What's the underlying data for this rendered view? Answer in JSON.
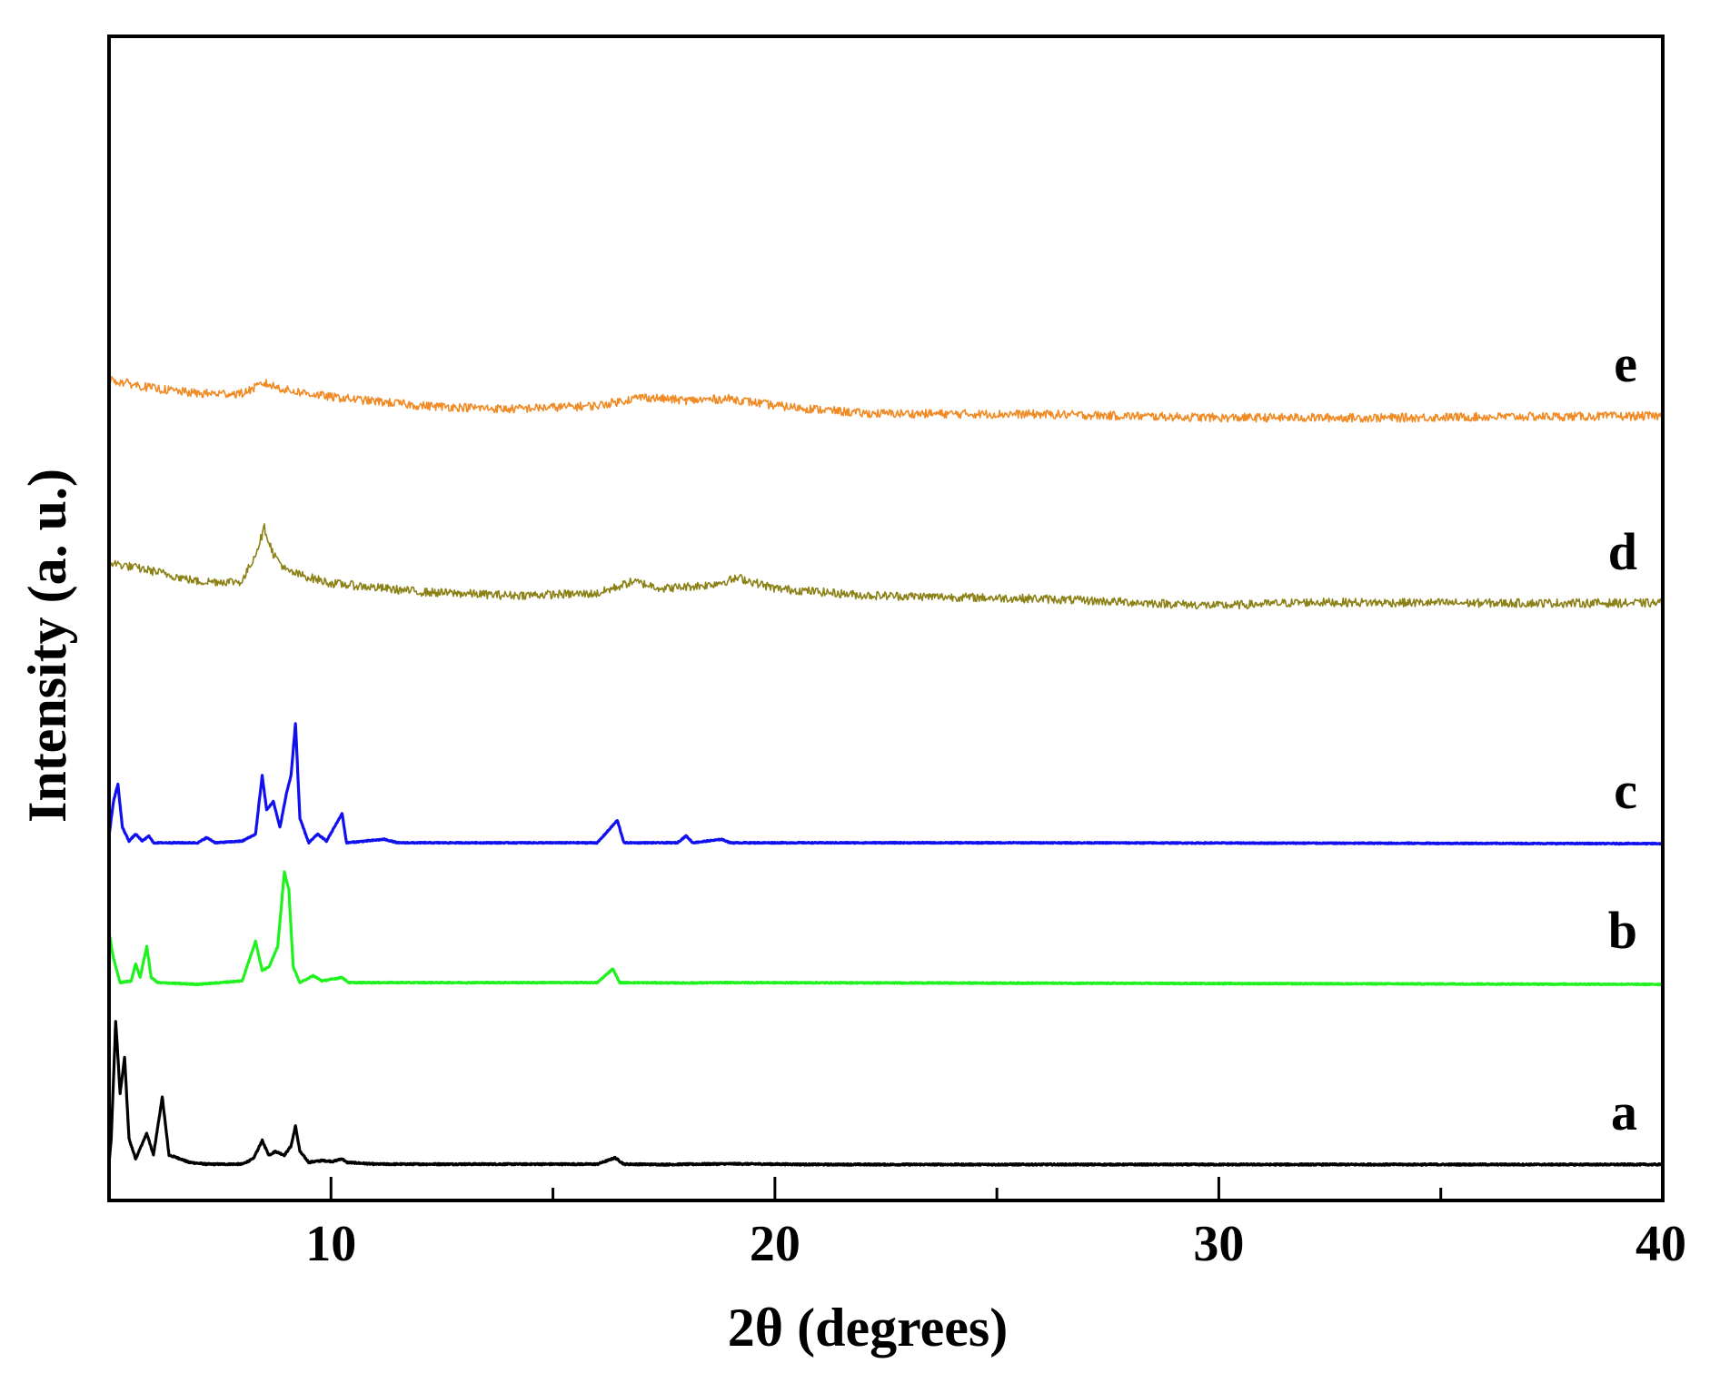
{
  "chart_data": {
    "type": "line",
    "title": "",
    "xlabel": "2θ (degrees)",
    "ylabel": "Intensity (a. u.)",
    "xlim": [
      5,
      40
    ],
    "x_ticks": [
      10,
      20,
      30,
      40
    ],
    "y_ticks_labeled": false,
    "grid": false,
    "legend": "none",
    "series": [
      {
        "name": "a",
        "color": "#000000",
        "baseline": 0.0,
        "noise": 0.004,
        "line_weight": "thick",
        "points": [
          [
            5.0,
            0.015
          ],
          [
            5.05,
            0.15
          ],
          [
            5.15,
            0.8
          ],
          [
            5.25,
            0.4
          ],
          [
            5.35,
            0.6
          ],
          [
            5.45,
            0.15
          ],
          [
            5.6,
            0.04
          ],
          [
            5.85,
            0.18
          ],
          [
            6.0,
            0.06
          ],
          [
            6.2,
            0.38
          ],
          [
            6.35,
            0.06
          ],
          [
            6.6,
            0.04
          ],
          [
            6.8,
            0.02
          ],
          [
            7.2,
            0.01
          ],
          [
            8.0,
            0.01
          ],
          [
            8.25,
            0.04
          ],
          [
            8.45,
            0.14
          ],
          [
            8.6,
            0.06
          ],
          [
            8.75,
            0.08
          ],
          [
            8.95,
            0.06
          ],
          [
            9.1,
            0.11
          ],
          [
            9.2,
            0.22
          ],
          [
            9.3,
            0.08
          ],
          [
            9.5,
            0.02
          ],
          [
            9.8,
            0.03
          ],
          [
            10.05,
            0.025
          ],
          [
            10.25,
            0.04
          ],
          [
            10.35,
            0.02
          ],
          [
            11.0,
            0.01
          ],
          [
            16.0,
            0.01
          ],
          [
            16.4,
            0.045
          ],
          [
            16.6,
            0.01
          ],
          [
            17.5,
            0.008
          ],
          [
            19.0,
            0.012
          ],
          [
            21.0,
            0.008
          ],
          [
            40.0,
            0.008
          ]
        ]
      },
      {
        "name": "b",
        "color": "#1ff21f",
        "baseline": 0.0,
        "noise": 0.003,
        "line_weight": "thick",
        "points": [
          [
            5.0,
            0.3
          ],
          [
            5.1,
            0.15
          ],
          [
            5.25,
            0.01
          ],
          [
            5.5,
            0.02
          ],
          [
            5.6,
            0.12
          ],
          [
            5.7,
            0.04
          ],
          [
            5.85,
            0.22
          ],
          [
            5.95,
            0.04
          ],
          [
            6.1,
            0.01
          ],
          [
            7.0,
            0.0
          ],
          [
            8.0,
            0.02
          ],
          [
            8.3,
            0.25
          ],
          [
            8.45,
            0.08
          ],
          [
            8.6,
            0.1
          ],
          [
            8.8,
            0.22
          ],
          [
            8.95,
            0.65
          ],
          [
            9.05,
            0.55
          ],
          [
            9.15,
            0.1
          ],
          [
            9.3,
            0.01
          ],
          [
            9.6,
            0.05
          ],
          [
            9.8,
            0.02
          ],
          [
            10.25,
            0.04
          ],
          [
            10.4,
            0.01
          ],
          [
            11.3,
            0.01
          ],
          [
            16.0,
            0.01
          ],
          [
            16.35,
            0.09
          ],
          [
            16.5,
            0.01
          ],
          [
            18.0,
            0.008
          ],
          [
            19.0,
            0.01
          ],
          [
            40.0,
            0.0
          ]
        ]
      },
      {
        "name": "c",
        "color": "#1111ee",
        "baseline": 0.0,
        "noise": 0.003,
        "line_weight": "thick",
        "points": [
          [
            5.0,
            0.05
          ],
          [
            5.1,
            0.25
          ],
          [
            5.2,
            0.35
          ],
          [
            5.3,
            0.1
          ],
          [
            5.45,
            0.02
          ],
          [
            5.6,
            0.06
          ],
          [
            5.75,
            0.02
          ],
          [
            5.9,
            0.05
          ],
          [
            6.0,
            0.01
          ],
          [
            7.0,
            0.01
          ],
          [
            7.2,
            0.04
          ],
          [
            7.4,
            0.01
          ],
          [
            8.0,
            0.02
          ],
          [
            8.3,
            0.06
          ],
          [
            8.45,
            0.4
          ],
          [
            8.55,
            0.2
          ],
          [
            8.7,
            0.25
          ],
          [
            8.85,
            0.1
          ],
          [
            9.0,
            0.3
          ],
          [
            9.1,
            0.4
          ],
          [
            9.2,
            0.7
          ],
          [
            9.3,
            0.15
          ],
          [
            9.5,
            0.01
          ],
          [
            9.7,
            0.06
          ],
          [
            9.9,
            0.02
          ],
          [
            10.25,
            0.18
          ],
          [
            10.35,
            0.01
          ],
          [
            11.2,
            0.03
          ],
          [
            11.5,
            0.01
          ],
          [
            16.0,
            0.01
          ],
          [
            16.45,
            0.14
          ],
          [
            16.6,
            0.01
          ],
          [
            17.8,
            0.01
          ],
          [
            18.0,
            0.05
          ],
          [
            18.15,
            0.01
          ],
          [
            18.8,
            0.03
          ],
          [
            19.0,
            0.01
          ],
          [
            26.0,
            0.01
          ],
          [
            40.0,
            0.005
          ]
        ]
      },
      {
        "name": "d",
        "color": "#8b8117",
        "baseline": 0.0,
        "noise": 0.025,
        "line_weight": "thin",
        "points": [
          [
            5.0,
            0.25
          ],
          [
            6.0,
            0.2
          ],
          [
            7.0,
            0.14
          ],
          [
            8.0,
            0.14
          ],
          [
            8.3,
            0.3
          ],
          [
            8.5,
            0.45
          ],
          [
            8.7,
            0.3
          ],
          [
            9.0,
            0.2
          ],
          [
            10.0,
            0.13
          ],
          [
            12.0,
            0.08
          ],
          [
            14.0,
            0.06
          ],
          [
            16.0,
            0.07
          ],
          [
            16.8,
            0.14
          ],
          [
            17.5,
            0.1
          ],
          [
            18.5,
            0.12
          ],
          [
            19.2,
            0.16
          ],
          [
            20.0,
            0.1
          ],
          [
            22.0,
            0.06
          ],
          [
            26.0,
            0.04
          ],
          [
            30.0,
            0.0
          ],
          [
            32.0,
            0.02
          ],
          [
            36.0,
            0.015
          ],
          [
            40.0,
            0.015
          ]
        ]
      },
      {
        "name": "e",
        "color": "#f08a24",
        "baseline": 0.0,
        "noise": 0.025,
        "line_weight": "thin",
        "points": [
          [
            5.0,
            0.22
          ],
          [
            6.0,
            0.17
          ],
          [
            7.0,
            0.14
          ],
          [
            8.0,
            0.14
          ],
          [
            8.5,
            0.2
          ],
          [
            9.0,
            0.16
          ],
          [
            10.0,
            0.12
          ],
          [
            12.0,
            0.07
          ],
          [
            14.0,
            0.05
          ],
          [
            16.0,
            0.07
          ],
          [
            17.0,
            0.12
          ],
          [
            18.0,
            0.1
          ],
          [
            19.0,
            0.11
          ],
          [
            20.0,
            0.07
          ],
          [
            22.0,
            0.025
          ],
          [
            26.0,
            0.02
          ],
          [
            28.0,
            0.01
          ],
          [
            30.0,
            0.0
          ],
          [
            32.0,
            0.0
          ],
          [
            34.0,
            0.0
          ],
          [
            36.0,
            0.005
          ],
          [
            40.0,
            0.01
          ]
        ]
      }
    ]
  }
}
